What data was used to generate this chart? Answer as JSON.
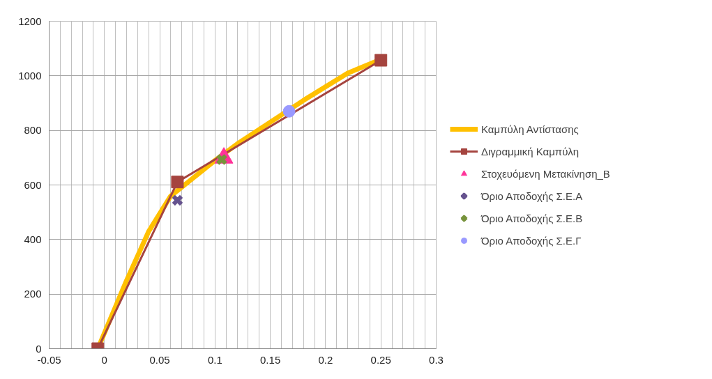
{
  "chart_data": {
    "type": "line",
    "xlim": [
      -0.05,
      0.3
    ],
    "ylim": [
      0,
      1200
    ],
    "xticks": [
      -0.05,
      {
        "value": -0.04,
        "label": null
      },
      {
        "value": -0.03,
        "label": null
      },
      {
        "value": -0.02,
        "label": null
      },
      {
        "value": -0.01,
        "label": null
      },
      0,
      {
        "value": 0.01,
        "label": null
      },
      {
        "value": 0.02,
        "label": null
      },
      {
        "value": 0.03,
        "label": null
      },
      {
        "value": 0.04,
        "label": null
      },
      0.05,
      {
        "value": 0.06,
        "label": null
      },
      {
        "value": 0.07,
        "label": null
      },
      {
        "value": 0.08,
        "label": null
      },
      {
        "value": 0.09,
        "label": null
      },
      0.1,
      {
        "value": 0.11,
        "label": null
      },
      {
        "value": 0.12,
        "label": null
      },
      {
        "value": 0.13,
        "label": null
      },
      {
        "value": 0.14,
        "label": null
      },
      0.15,
      {
        "value": 0.16,
        "label": null
      },
      {
        "value": 0.17,
        "label": null
      },
      {
        "value": 0.18,
        "label": null
      },
      {
        "value": 0.19,
        "label": null
      },
      0.2,
      {
        "value": 0.21,
        "label": null
      },
      {
        "value": 0.22,
        "label": null
      },
      {
        "value": 0.23,
        "label": null
      },
      {
        "value": 0.24,
        "label": null
      },
      0.25,
      {
        "value": 0.26,
        "label": null
      },
      {
        "value": 0.27,
        "label": null
      },
      {
        "value": 0.28,
        "label": null
      },
      {
        "value": 0.29,
        "label": null
      },
      0.3
    ],
    "yticks": [
      0,
      200,
      400,
      600,
      800,
      1000,
      1200
    ],
    "grid": true,
    "legend": "right",
    "series": [
      {
        "name": "Καμπύλη Αντίστασης",
        "color": "#ffc000",
        "marker": "none",
        "x": [
          -0.006,
          0.02,
          0.04,
          0.06,
          0.077,
          0.1,
          0.12,
          0.15,
          0.18,
          0.2,
          0.22,
          0.25
        ],
        "values": [
          0,
          250,
          430,
          560,
          615,
          690,
          750,
          830,
          910,
          960,
          1010,
          1060
        ]
      },
      {
        "name": "Διγραμμική Καμπύλη",
        "color": "#a5443f",
        "marker": "square",
        "x": [
          -0.006,
          0.066,
          0.25
        ],
        "values": [
          0,
          611,
          1057
        ]
      },
      {
        "name": "Στοχευόμενη Μετακίνηση_Β",
        "color": "#ff3399",
        "marker": "triangle",
        "x": [
          0.108
        ],
        "values": [
          699
        ]
      },
      {
        "name": "Όριο Αποδοχής Σ.Ε.Α",
        "color": "#65528e",
        "marker": "cross",
        "x": [
          0.066
        ],
        "values": [
          544
        ]
      },
      {
        "name": "Όριο Αποδοχής Σ.Ε.Β",
        "color": "#77933c",
        "marker": "cross",
        "x": [
          0.106
        ],
        "values": [
          693
        ]
      },
      {
        "name": "Όριο Αποδοχής Σ.Ε.Γ",
        "color": "#9999ff",
        "marker": "circle",
        "x": [
          0.167
        ],
        "values": [
          870
        ]
      }
    ]
  }
}
